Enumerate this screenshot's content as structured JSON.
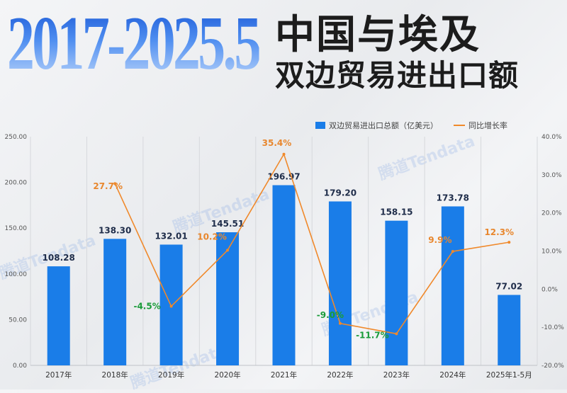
{
  "header": {
    "year_range": "2017-2025.5",
    "title_line1": "中国与埃及",
    "title_line2": "双边贸易进出口额"
  },
  "watermark": "腾道Tendata",
  "colors": {
    "bar": "#1a7de8",
    "line": "#f0892b",
    "positive_label": "#e8872e",
    "negative_label": "#1a9b3a"
  },
  "chart_data": {
    "type": "bar",
    "categories": [
      "2017年",
      "2018年",
      "2019年",
      "2020年",
      "2021年",
      "2022年",
      "2023年",
      "2024年",
      "2025年1-5月"
    ],
    "series": [
      {
        "name": "双边贸易进出口总额（亿美元）",
        "type": "bar",
        "axis": "left",
        "values": [
          108.28,
          138.3,
          132.01,
          145.51,
          196.97,
          179.2,
          158.15,
          173.78,
          77.02
        ],
        "labels": [
          "108.28",
          "138.30",
          "132.01",
          "145.51",
          "196.97",
          "179.20",
          "158.15",
          "173.78",
          "77.02"
        ]
      },
      {
        "name": "同比增长率",
        "type": "line",
        "axis": "right",
        "values": [
          null,
          27.7,
          -4.5,
          10.2,
          35.4,
          -9.0,
          -11.7,
          9.9,
          12.3
        ],
        "labels": [
          "",
          "27.7%",
          "-4.5%",
          "10.2%",
          "35.4%",
          "-9.0%",
          "-11.7%",
          "9.9%",
          "12.3%"
        ]
      }
    ],
    "ylim": [
      0,
      250
    ],
    "y_ticks": [
      "0.00",
      "50.00",
      "100.00",
      "150.00",
      "200.00",
      "250.00"
    ],
    "y2lim": [
      -20,
      40
    ],
    "y2_ticks": [
      "-20.0%",
      "-10.0%",
      "0.0%",
      "10.0%",
      "20.0%",
      "30.0%",
      "40.0%"
    ],
    "legend_position": "top-right",
    "grid": "vertical"
  }
}
